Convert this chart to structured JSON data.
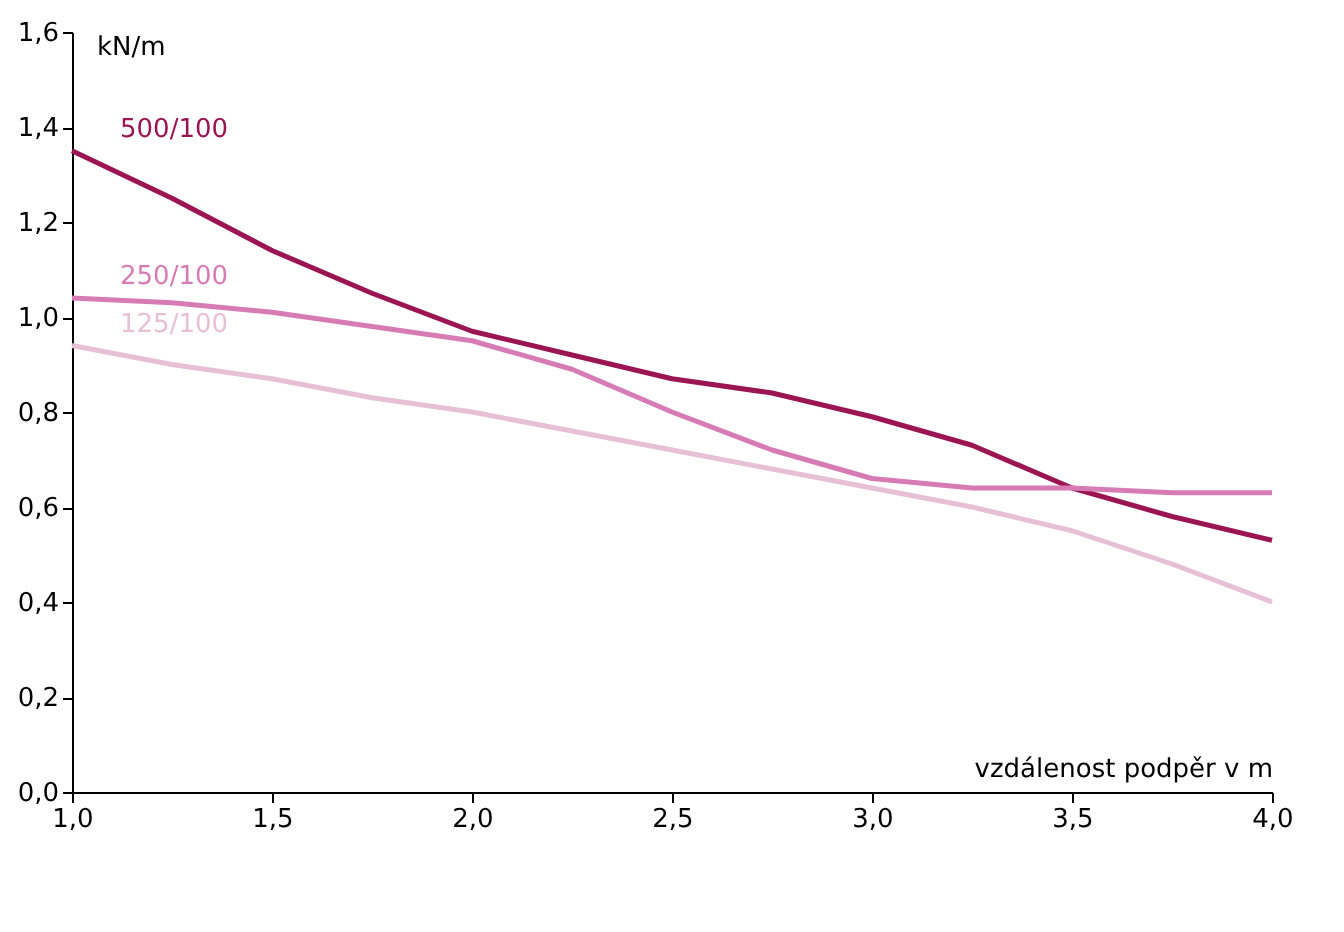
{
  "chart_data": {
    "type": "line",
    "xlabel": "vzdálenost podpěr v m",
    "ylabel": "kN/m",
    "x": [
      1.0,
      1.25,
      1.5,
      1.75,
      2.0,
      2.25,
      2.5,
      2.75,
      3.0,
      3.25,
      3.5,
      3.75,
      4.0
    ],
    "series": [
      {
        "name": "500/100",
        "color": "#9b1552",
        "values": [
          1.35,
          1.25,
          1.14,
          1.05,
          0.97,
          0.92,
          0.87,
          0.84,
          0.79,
          0.73,
          0.64,
          0.58,
          0.53
        ]
      },
      {
        "name": "250/100",
        "color": "#d77bb5",
        "values": [
          1.04,
          1.03,
          1.01,
          0.98,
          0.95,
          0.89,
          0.8,
          0.72,
          0.66,
          0.64,
          0.64,
          0.63,
          0.63
        ]
      },
      {
        "name": "125/100",
        "color": "#e8c0d6",
        "values": [
          0.94,
          0.9,
          0.87,
          0.83,
          0.8,
          0.76,
          0.72,
          0.68,
          0.64,
          0.6,
          0.55,
          0.48,
          0.4
        ]
      }
    ],
    "xlim": [
      1.0,
      4.0
    ],
    "ylim": [
      0,
      1.6
    ],
    "xticks": [
      {
        "value": 1.0,
        "label": "1,0"
      },
      {
        "value": 1.5,
        "label": "1,5"
      },
      {
        "value": 2.0,
        "label": "2,0"
      },
      {
        "value": 2.5,
        "label": "2,5"
      },
      {
        "value": 3.0,
        "label": "3,0"
      },
      {
        "value": 3.5,
        "label": "3,5"
      },
      {
        "value": 4.0,
        "label": "4,0"
      }
    ],
    "yticks": [
      {
        "value": 0,
        "label": "0,0"
      },
      {
        "value": 0.2,
        "label": "0,2"
      },
      {
        "value": 0.4,
        "label": "0,4"
      },
      {
        "value": 0.6,
        "label": "0,6"
      },
      {
        "value": 0.8,
        "label": "0,8"
      },
      {
        "value": 1.0,
        "label": "1,0"
      },
      {
        "value": 1.2,
        "label": "1,2"
      },
      {
        "value": 1.4,
        "label": "1,4"
      },
      {
        "value": 1.6,
        "label": "1,6"
      }
    ],
    "grid": false,
    "legend": false,
    "marker": "none",
    "line_style": "solid"
  }
}
